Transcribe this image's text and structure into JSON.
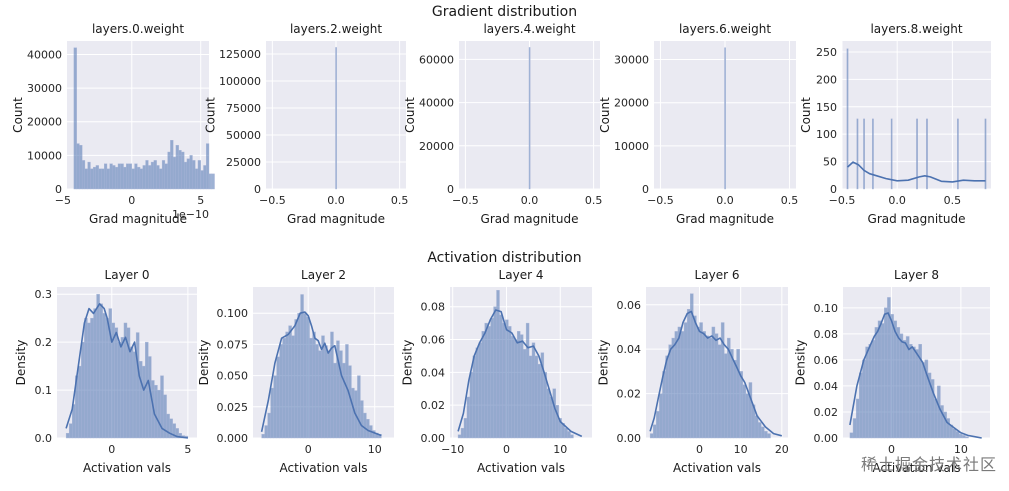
{
  "figure": {
    "gradient_title": "Gradient distribution",
    "activation_title": "Activation distribution",
    "watermark": "稀土掘金技术社区"
  },
  "colors": {
    "bg": "#eaeaf2",
    "grid": "#ffffff",
    "bar": "#4c72b0",
    "bar_edge": "#aab6d8",
    "kde": "#4c72b0"
  },
  "chart_data": [
    {
      "type": "bar",
      "id": "grad0",
      "title": "layers.0.weight",
      "xlabel": "Grad magnitude",
      "ylabel": "Count",
      "xlim": [
        -4.7,
        5.6
      ],
      "ylim": [
        0,
        44000
      ],
      "offset_text": "1e−10",
      "xticks": [
        [
          -5,
          "−5"
        ],
        [
          0,
          "0"
        ],
        [
          5,
          "5"
        ]
      ],
      "yticks": [
        [
          0,
          "0"
        ],
        [
          10000,
          "10000"
        ],
        [
          20000,
          "20000"
        ],
        [
          30000,
          "30000"
        ],
        [
          40000,
          "40000"
        ]
      ],
      "bin_start": -4.2,
      "bin_width": 0.2,
      "values": [
        42000,
        13500,
        13000,
        8500,
        6000,
        8000,
        6000,
        6500,
        7000,
        6000,
        6000,
        7500,
        6000,
        7500,
        7000,
        6500,
        7500,
        7500,
        6500,
        7500,
        7500,
        6000,
        7500,
        6500,
        6000,
        7000,
        8500,
        7000,
        8000,
        8500,
        7000,
        6000,
        8500,
        7500,
        11000,
        14500,
        9500,
        13000,
        11500,
        11000,
        8000,
        9000,
        10000,
        8500,
        6000,
        8500,
        5500,
        7000,
        13500,
        4500,
        4500
      ],
      "kde": null
    },
    {
      "type": "bar",
      "id": "grad2",
      "title": "layers.2.weight",
      "xlabel": "Grad magnitude",
      "ylabel": "Count",
      "xlim": [
        -0.55,
        0.55
      ],
      "ylim": [
        0,
        137000
      ],
      "xticks": [
        [
          -0.5,
          "−0.5"
        ],
        [
          0,
          "0.0"
        ],
        [
          0.5,
          "0.5"
        ]
      ],
      "yticks": [
        [
          0,
          "0"
        ],
        [
          25000,
          "25000"
        ],
        [
          50000,
          "50000"
        ],
        [
          75000,
          "75000"
        ],
        [
          100000,
          "100000"
        ],
        [
          125000,
          "125000"
        ]
      ],
      "bin_start": -0.004,
      "bin_width": 0.008,
      "values": [
        131072
      ],
      "kde": null
    },
    {
      "type": "bar",
      "id": "grad4",
      "title": "layers.4.weight",
      "xlabel": "Grad magnitude",
      "ylabel": "Count",
      "xlim": [
        -0.55,
        0.55
      ],
      "ylim": [
        0,
        68500
      ],
      "xticks": [
        [
          -0.5,
          "−0.5"
        ],
        [
          0,
          "0.0"
        ],
        [
          0.5,
          "0.5"
        ]
      ],
      "yticks": [
        [
          0,
          "0"
        ],
        [
          20000,
          "20000"
        ],
        [
          40000,
          "40000"
        ],
        [
          60000,
          "60000"
        ]
      ],
      "bin_start": -0.004,
      "bin_width": 0.008,
      "values": [
        65536
      ],
      "kde": null
    },
    {
      "type": "bar",
      "id": "grad6",
      "title": "layers.6.weight",
      "xlabel": "Grad magnitude",
      "ylabel": "Count",
      "xlim": [
        -0.55,
        0.55
      ],
      "ylim": [
        0,
        34300
      ],
      "xticks": [
        [
          -0.5,
          "−0.5"
        ],
        [
          0,
          "0.0"
        ],
        [
          0.5,
          "0.5"
        ]
      ],
      "yticks": [
        [
          0,
          "0"
        ],
        [
          10000,
          "10000"
        ],
        [
          20000,
          "20000"
        ],
        [
          30000,
          "30000"
        ]
      ],
      "bin_start": -0.004,
      "bin_width": 0.008,
      "values": [
        32768
      ],
      "kde": null
    },
    {
      "type": "bar",
      "id": "grad8",
      "title": "layers.8.weight",
      "xlabel": "Grad magnitude",
      "ylabel": "Count",
      "xlim": [
        -0.5,
        0.85
      ],
      "ylim": [
        0,
        270
      ],
      "xticks": [
        [
          -0.5,
          "−0.5"
        ],
        [
          0,
          "0.0"
        ],
        [
          0.5,
          "0.5"
        ]
      ],
      "yticks": [
        [
          0,
          "0"
        ],
        [
          50,
          "50"
        ],
        [
          100,
          "100"
        ],
        [
          150,
          "150"
        ],
        [
          200,
          "200"
        ],
        [
          250,
          "250"
        ]
      ],
      "bar_positions": [
        -0.45,
        -0.36,
        -0.3,
        -0.22,
        -0.05,
        0.18,
        0.27,
        0.55,
        0.8
      ],
      "bar_values": [
        256,
        128,
        128,
        128,
        128,
        128,
        128,
        128,
        128
      ],
      "bar_width": 0.012,
      "kde": {
        "x": [
          -0.45,
          -0.4,
          -0.35,
          -0.3,
          -0.25,
          -0.2,
          -0.1,
          0,
          0.1,
          0.2,
          0.25,
          0.3,
          0.4,
          0.5,
          0.6,
          0.7,
          0.8
        ],
        "y": [
          40,
          49,
          44,
          34,
          28,
          25,
          19,
          15,
          16,
          22,
          24,
          22,
          14,
          13,
          16,
          15,
          15
        ]
      }
    },
    {
      "type": "bar",
      "id": "act0",
      "title": "Layer 0",
      "xlabel": "Activation vals",
      "ylabel": "Density",
      "xlim": [
        -3.6,
        5.6
      ],
      "ylim": [
        0,
        0.315
      ],
      "xticks": [
        [
          0,
          "0"
        ],
        [
          5,
          "5"
        ]
      ],
      "yticks": [
        [
          0,
          "0.0"
        ],
        [
          0.1,
          "0.1"
        ],
        [
          0.2,
          "0.2"
        ],
        [
          0.3,
          "0.3"
        ]
      ],
      "bin_start": -3.0,
      "bin_width": 0.2,
      "values": [
        0.01,
        0.03,
        0.07,
        0.13,
        0.15,
        0.2,
        0.25,
        0.24,
        0.25,
        0.27,
        0.3,
        0.28,
        0.26,
        0.25,
        0.27,
        0.24,
        0.23,
        0.2,
        0.21,
        0.24,
        0.23,
        0.19,
        0.18,
        0.22,
        0.16,
        0.15,
        0.2,
        0.17,
        0.12,
        0.11,
        0.1,
        0.13,
        0.09,
        0.05,
        0.04,
        0.03,
        0.02,
        0.01,
        0.005,
        0.004
      ],
      "kde": {
        "x": [
          -3,
          -2.6,
          -2.2,
          -1.8,
          -1.5,
          -1.2,
          -0.8,
          -0.5,
          -0.3,
          0,
          0.3,
          0.6,
          0.9,
          1.2,
          1.5,
          1.8,
          2.1,
          2.4,
          2.8,
          3.3,
          3.8,
          4.3,
          5
        ],
        "y": [
          0.02,
          0.06,
          0.15,
          0.24,
          0.27,
          0.26,
          0.28,
          0.27,
          0.25,
          0.2,
          0.22,
          0.19,
          0.21,
          0.18,
          0.2,
          0.13,
          0.1,
          0.12,
          0.05,
          0.02,
          0.01,
          0.003,
          0
        ]
      }
    },
    {
      "type": "bar",
      "id": "act2",
      "title": "Layer 2",
      "xlabel": "Activation vals",
      "ylabel": "Density",
      "xlim": [
        -8.3,
        12.9
      ],
      "ylim": [
        0,
        0.121
      ],
      "xticks": [
        [
          0,
          "0"
        ],
        [
          10,
          "10"
        ]
      ],
      "yticks": [
        [
          0,
          "0.000"
        ],
        [
          0.025,
          "0.025"
        ],
        [
          0.05,
          "0.050"
        ],
        [
          0.075,
          "0.075"
        ],
        [
          0.1,
          "0.100"
        ]
      ],
      "bin_start": -7.0,
      "bin_width": 0.45,
      "values": [
        0.003,
        0.01,
        0.02,
        0.04,
        0.05,
        0.065,
        0.075,
        0.08,
        0.085,
        0.09,
        0.082,
        0.095,
        0.1,
        0.115,
        0.1,
        0.097,
        0.08,
        0.085,
        0.075,
        0.07,
        0.082,
        0.074,
        0.07,
        0.085,
        0.06,
        0.078,
        0.07,
        0.06,
        0.075,
        0.058,
        0.04,
        0.038,
        0.05,
        0.03,
        0.02,
        0.015,
        0.01,
        0.006,
        0.004,
        0.003
      ],
      "kde": {
        "x": [
          -7,
          -6,
          -5,
          -4,
          -3,
          -2,
          -1.2,
          -0.5,
          0,
          0.5,
          1,
          1.5,
          2,
          2.5,
          3,
          3.5,
          4,
          5,
          6,
          7,
          8,
          9,
          10,
          11
        ],
        "y": [
          0.005,
          0.03,
          0.06,
          0.08,
          0.083,
          0.09,
          0.1,
          0.101,
          0.098,
          0.09,
          0.08,
          0.078,
          0.071,
          0.076,
          0.068,
          0.072,
          0.074,
          0.05,
          0.038,
          0.02,
          0.01,
          0.006,
          0.004,
          0.002
        ]
      }
    },
    {
      "type": "bar",
      "id": "act4",
      "title": "Layer 4",
      "xlabel": "Activation vals",
      "ylabel": "Density",
      "xlim": [
        -10.5,
        15.9
      ],
      "ylim": [
        0,
        0.092
      ],
      "xticks": [
        [
          -10,
          "−10"
        ],
        [
          0,
          "0"
        ],
        [
          10,
          "10"
        ]
      ],
      "yticks": [
        [
          0,
          "0.00"
        ],
        [
          0.02,
          "0.02"
        ],
        [
          0.04,
          "0.04"
        ],
        [
          0.06,
          "0.06"
        ],
        [
          0.08,
          "0.08"
        ]
      ],
      "bin_start": -9.0,
      "bin_width": 0.55,
      "values": [
        0.002,
        0.006,
        0.012,
        0.025,
        0.04,
        0.05,
        0.055,
        0.058,
        0.065,
        0.07,
        0.068,
        0.073,
        0.08,
        0.09,
        0.075,
        0.07,
        0.072,
        0.068,
        0.062,
        0.06,
        0.065,
        0.063,
        0.054,
        0.07,
        0.05,
        0.058,
        0.05,
        0.045,
        0.052,
        0.04,
        0.03,
        0.025,
        0.03,
        0.02,
        0.012,
        0.009,
        0.006,
        0.004,
        0.002
      ],
      "kde": {
        "x": [
          -9,
          -8,
          -7,
          -6,
          -5,
          -4,
          -3,
          -2,
          -1,
          0,
          1,
          2,
          3,
          4,
          5,
          6,
          7,
          8,
          9,
          10,
          12,
          14
        ],
        "y": [
          0.004,
          0.015,
          0.035,
          0.05,
          0.058,
          0.064,
          0.072,
          0.078,
          0.077,
          0.066,
          0.064,
          0.058,
          0.059,
          0.055,
          0.056,
          0.05,
          0.04,
          0.029,
          0.018,
          0.01,
          0.004,
          0.001
        ]
      }
    },
    {
      "type": "bar",
      "id": "act6",
      "title": "Layer 6",
      "xlabel": "Activation vals",
      "ylabel": "Density",
      "xlim": [
        -13.0,
        21.5
      ],
      "ylim": [
        0,
        0.068
      ],
      "xticks": [
        [
          0,
          "0"
        ],
        [
          10,
          "10"
        ],
        [
          20,
          "20"
        ]
      ],
      "yticks": [
        [
          0,
          "0.00"
        ],
        [
          0.02,
          "0.02"
        ],
        [
          0.04,
          "0.04"
        ],
        [
          0.06,
          "0.06"
        ]
      ],
      "bin_start": -12.0,
      "bin_width": 0.75,
      "values": [
        0.002,
        0.006,
        0.012,
        0.02,
        0.03,
        0.037,
        0.042,
        0.045,
        0.048,
        0.05,
        0.048,
        0.052,
        0.058,
        0.065,
        0.055,
        0.05,
        0.052,
        0.048,
        0.046,
        0.045,
        0.05,
        0.047,
        0.042,
        0.052,
        0.038,
        0.045,
        0.04,
        0.035,
        0.04,
        0.03,
        0.024,
        0.02,
        0.025,
        0.015,
        0.01,
        0.007,
        0.005,
        0.003,
        0.002
      ],
      "kde": {
        "x": [
          -12,
          -11,
          -10,
          -9,
          -8,
          -7,
          -6,
          -5,
          -4,
          -3,
          -2,
          -1,
          0,
          1,
          2,
          3,
          4,
          5,
          6,
          7,
          8,
          9,
          10,
          11,
          12,
          14,
          16,
          18,
          20
        ],
        "y": [
          0.003,
          0.009,
          0.018,
          0.027,
          0.035,
          0.04,
          0.042,
          0.045,
          0.052,
          0.056,
          0.057,
          0.052,
          0.048,
          0.047,
          0.045,
          0.046,
          0.044,
          0.045,
          0.042,
          0.04,
          0.036,
          0.032,
          0.028,
          0.025,
          0.02,
          0.01,
          0.005,
          0.002,
          0.001
        ]
      }
    },
    {
      "type": "bar",
      "id": "act8",
      "title": "Layer 8",
      "xlabel": "Activation vals",
      "ylabel": "Density",
      "xlim": [
        -7.0,
        14.2
      ],
      "ylim": [
        0,
        0.116
      ],
      "xticks": [
        [
          0,
          "0"
        ],
        [
          10,
          "10"
        ]
      ],
      "yticks": [
        [
          0,
          "0.00"
        ],
        [
          0.02,
          "0.02"
        ],
        [
          0.04,
          "0.04"
        ],
        [
          0.06,
          "0.06"
        ],
        [
          0.08,
          "0.08"
        ],
        [
          0.1,
          "0.10"
        ]
      ],
      "bin_start": -6.0,
      "bin_width": 0.45,
      "values": [
        0.004,
        0.015,
        0.03,
        0.05,
        0.06,
        0.07,
        0.072,
        0.075,
        0.085,
        0.09,
        0.088,
        0.1,
        0.108,
        0.095,
        0.09,
        0.085,
        0.08,
        0.075,
        0.078,
        0.072,
        0.07,
        0.068,
        0.072,
        0.058,
        0.06,
        0.05,
        0.045,
        0.03,
        0.04,
        0.025,
        0.02,
        0.015,
        0.01,
        0.007,
        0.005,
        0.003,
        0.002,
        0.001
      ],
      "kde": {
        "x": [
          -6,
          -5,
          -4,
          -3,
          -2.5,
          -2,
          -1.5,
          -1,
          -0.5,
          0,
          0.5,
          1,
          1.5,
          2,
          2.5,
          3,
          3.5,
          4,
          4.5,
          5,
          6,
          7,
          8,
          9,
          10,
          11,
          12,
          13
        ],
        "y": [
          0.01,
          0.04,
          0.06,
          0.072,
          0.078,
          0.082,
          0.088,
          0.095,
          0.096,
          0.09,
          0.082,
          0.077,
          0.074,
          0.073,
          0.068,
          0.07,
          0.066,
          0.062,
          0.058,
          0.05,
          0.035,
          0.022,
          0.012,
          0.008,
          0.004,
          0.002,
          0.001,
          0
        ]
      }
    }
  ]
}
